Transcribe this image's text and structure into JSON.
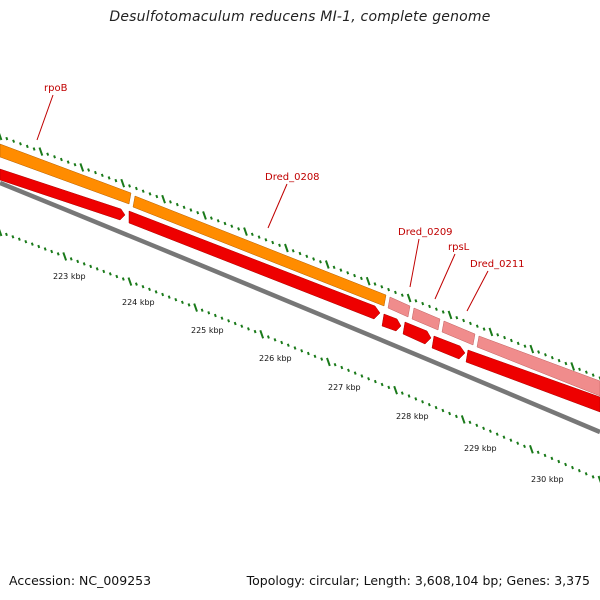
{
  "title": "Desulfotomaculum reducens MI-1, complete genome",
  "footer": {
    "accession": "Accession: NC_009253",
    "topology": "Topology: circular; Length: 3,608,104 bp; Genes: 3,375"
  },
  "colors": {
    "cds_forward_orange": "#ff8c00",
    "cds_forward_pink": "#f08c8c",
    "cds_reverse_red": "#ee0000",
    "backbone_gray": "#7a7a7a",
    "tick_green": "#1a7a1a",
    "label_red": "#c00000"
  },
  "genes": [
    {
      "name": "rpoB"
    },
    {
      "name": "Dred_0208"
    },
    {
      "name": "Dred_0209"
    },
    {
      "name": "rpsL"
    },
    {
      "name": "Dred_0211"
    }
  ],
  "scale": [
    {
      "label": "223 kbp"
    },
    {
      "label": "224 kbp"
    },
    {
      "label": "225 kbp"
    },
    {
      "label": "226 kbp"
    },
    {
      "label": "227 kbp"
    },
    {
      "label": "228 kbp"
    },
    {
      "label": "229 kbp"
    },
    {
      "label": "230 kbp"
    }
  ]
}
